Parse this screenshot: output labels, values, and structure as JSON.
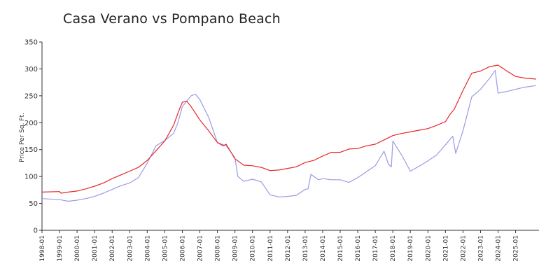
{
  "chart_data": {
    "type": "line",
    "title": "Casa Verano vs Pompano Beach",
    "xlabel": "",
    "ylabel": "Price Per Sq. Ft.",
    "ylim": [
      0,
      350
    ],
    "yticks": [
      0,
      50,
      100,
      150,
      200,
      250,
      300,
      350
    ],
    "xlim": [
      "1998-01",
      "2026-05"
    ],
    "xticks": [
      "1998-01",
      "1999-01",
      "2000-01",
      "2001-01",
      "2002-01",
      "2003-01",
      "2004-01",
      "2005-01",
      "2006-01",
      "2007-01",
      "2008-01",
      "2009-01",
      "2010-01",
      "2011-01",
      "2012-01",
      "2013-01",
      "2014-01",
      "2015-01",
      "2016-01",
      "2017-01",
      "2018-01",
      "2019-01",
      "2020-01",
      "2021-01",
      "2022-01",
      "2023-01",
      "2024-01",
      "2025-01"
    ],
    "grid": false,
    "legend": "none",
    "series": [
      {
        "color": "#e8262b",
        "points": [
          [
            "1998-01",
            71
          ],
          [
            "1999-01",
            72
          ],
          [
            "1999-02",
            69
          ],
          [
            "1999-07",
            71
          ],
          [
            "2000-01",
            73
          ],
          [
            "2000-07",
            77
          ],
          [
            "2001-01",
            82
          ],
          [
            "2001-07",
            88
          ],
          [
            "2002-01",
            96
          ],
          [
            "2002-07",
            103
          ],
          [
            "2003-01",
            110
          ],
          [
            "2003-07",
            117
          ],
          [
            "2004-01",
            130
          ],
          [
            "2004-07",
            148
          ],
          [
            "2005-01",
            166
          ],
          [
            "2005-07",
            195
          ],
          [
            "2005-11",
            225
          ],
          [
            "2006-01",
            238
          ],
          [
            "2006-04",
            240
          ],
          [
            "2006-07",
            230
          ],
          [
            "2007-01",
            205
          ],
          [
            "2007-07",
            185
          ],
          [
            "2008-01",
            163
          ],
          [
            "2008-05",
            157
          ],
          [
            "2008-07",
            160
          ],
          [
            "2009-01",
            133
          ],
          [
            "2009-07",
            121
          ],
          [
            "2010-01",
            120
          ],
          [
            "2010-07",
            117
          ],
          [
            "2011-01",
            111
          ],
          [
            "2011-07",
            112
          ],
          [
            "2012-01",
            115
          ],
          [
            "2012-07",
            118
          ],
          [
            "2013-01",
            126
          ],
          [
            "2013-07",
            130
          ],
          [
            "2014-01",
            138
          ],
          [
            "2014-07",
            145
          ],
          [
            "2015-01",
            145
          ],
          [
            "2015-07",
            151
          ],
          [
            "2016-01",
            152
          ],
          [
            "2016-07",
            157
          ],
          [
            "2017-01",
            160
          ],
          [
            "2017-07",
            168
          ],
          [
            "2018-01",
            176
          ],
          [
            "2018-07",
            180
          ],
          [
            "2019-01",
            183
          ],
          [
            "2019-07",
            186
          ],
          [
            "2020-01",
            189
          ],
          [
            "2020-07",
            195
          ],
          [
            "2021-01",
            202
          ],
          [
            "2021-04",
            215
          ],
          [
            "2021-07",
            225
          ],
          [
            "2022-01",
            260
          ],
          [
            "2022-07",
            292
          ],
          [
            "2023-01",
            296
          ],
          [
            "2023-07",
            304
          ],
          [
            "2024-01",
            307
          ],
          [
            "2024-07",
            296
          ],
          [
            "2025-01",
            286
          ],
          [
            "2025-07",
            283
          ],
          [
            "2026-03",
            281
          ]
        ]
      },
      {
        "color": "#9a9ae8",
        "points": [
          [
            "1998-01",
            59
          ],
          [
            "1999-01",
            57
          ],
          [
            "1999-07",
            54
          ],
          [
            "2000-01",
            56
          ],
          [
            "2000-07",
            59
          ],
          [
            "2001-01",
            63
          ],
          [
            "2001-07",
            69
          ],
          [
            "2002-01",
            76
          ],
          [
            "2002-07",
            83
          ],
          [
            "2003-01",
            88
          ],
          [
            "2003-07",
            98
          ],
          [
            "2004-01",
            125
          ],
          [
            "2004-07",
            157
          ],
          [
            "2005-01",
            167
          ],
          [
            "2005-07",
            180
          ],
          [
            "2005-10",
            200
          ],
          [
            "2006-01",
            230
          ],
          [
            "2006-07",
            250
          ],
          [
            "2006-10",
            253
          ],
          [
            "2007-01",
            243
          ],
          [
            "2007-07",
            210
          ],
          [
            "2008-01",
            163
          ],
          [
            "2008-07",
            157
          ],
          [
            "2009-01",
            135
          ],
          [
            "2009-03",
            100
          ],
          [
            "2009-07",
            91
          ],
          [
            "2010-01",
            95
          ],
          [
            "2010-07",
            90
          ],
          [
            "2011-01",
            66
          ],
          [
            "2011-07",
            62
          ],
          [
            "2012-01",
            63
          ],
          [
            "2012-07",
            65
          ],
          [
            "2013-01",
            76
          ],
          [
            "2013-03",
            77
          ],
          [
            "2013-05",
            104
          ],
          [
            "2013-10",
            94
          ],
          [
            "2014-01",
            96
          ],
          [
            "2014-07",
            94
          ],
          [
            "2015-01",
            94
          ],
          [
            "2015-07",
            89
          ],
          [
            "2016-01",
            98
          ],
          [
            "2016-07",
            109
          ],
          [
            "2017-01",
            120
          ],
          [
            "2017-07",
            147
          ],
          [
            "2017-10",
            123
          ],
          [
            "2017-12",
            118
          ],
          [
            "2018-01",
            166
          ],
          [
            "2018-07",
            140
          ],
          [
            "2019-01",
            110
          ],
          [
            "2019-07",
            119
          ],
          [
            "2020-01",
            129
          ],
          [
            "2020-07",
            140
          ],
          [
            "2021-01",
            159
          ],
          [
            "2021-06",
            175
          ],
          [
            "2021-08",
            143
          ],
          [
            "2022-01",
            185
          ],
          [
            "2022-07",
            248
          ],
          [
            "2023-01",
            262
          ],
          [
            "2023-07",
            282
          ],
          [
            "2023-11",
            297
          ],
          [
            "2024-01",
            255
          ],
          [
            "2024-07",
            258
          ],
          [
            "2025-01",
            262
          ],
          [
            "2025-07",
            266
          ],
          [
            "2026-03",
            269
          ]
        ]
      }
    ]
  }
}
